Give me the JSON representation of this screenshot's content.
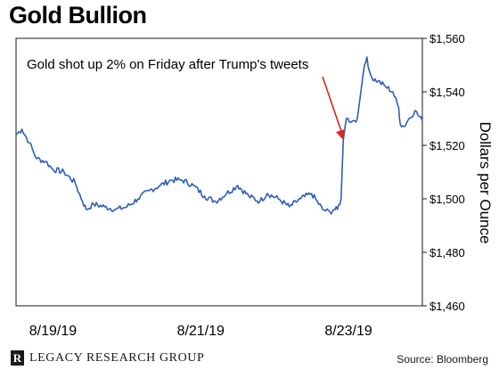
{
  "title": "Gold Bullion",
  "footer": {
    "logo_text": "LEGACY RESEARCH GROUP",
    "logo_mark": "R",
    "source": "Source: Bloomberg"
  },
  "chart_data": {
    "type": "line",
    "title": "Gold Bullion",
    "ylabel": "Dollars per Ounce",
    "xlabel": "",
    "ylim": [
      1460,
      1560
    ],
    "y_ticks": [
      1460,
      1480,
      1500,
      1520,
      1540,
      1560
    ],
    "y_tick_labels": [
      "$1,460",
      "$1,480",
      "$1,500",
      "$1,520",
      "$1,540",
      "$1,560"
    ],
    "x_ticks": [
      {
        "label": "8/19/19",
        "t": 0.2
      },
      {
        "label": "8/21/19",
        "t": 2.2
      },
      {
        "label": "8/23/19",
        "t": 4.2
      }
    ],
    "xlim": [
      -0.3,
      5.2
    ],
    "grid": false,
    "line_color": "#2f5fb3",
    "annotation": {
      "text": "Gold shot up 2% on Friday after Trump's tweets",
      "arrow_target": {
        "t": 4.13,
        "y": 1522
      },
      "arrow_color": "#e0231c"
    },
    "series": [
      {
        "x": [
          -0.3,
          -0.22,
          -0.12,
          -0.02,
          0.1,
          0.2,
          0.35,
          0.5,
          0.6,
          0.65,
          0.75,
          0.9,
          1.05,
          1.2,
          1.35,
          1.5,
          1.65,
          1.8,
          1.95,
          2.1,
          2.25,
          2.4,
          2.55,
          2.7,
          2.85,
          3.0,
          3.1,
          3.25,
          3.4,
          3.55,
          3.7,
          3.85,
          3.95,
          4.0,
          4.05,
          4.1,
          4.13,
          4.17,
          4.25,
          4.32,
          4.4,
          4.45,
          4.48,
          4.52,
          4.6,
          4.7,
          4.8,
          4.88,
          4.9,
          4.95,
          5.02,
          5.1,
          5.2
        ],
        "y": [
          1524,
          1526,
          1521,
          1515,
          1514,
          1511,
          1510,
          1506,
          1499,
          1496,
          1498,
          1497,
          1496,
          1497,
          1500,
          1503,
          1505,
          1507,
          1507,
          1505,
          1501,
          1499,
          1502,
          1505,
          1501,
          1499,
          1502,
          1500,
          1497,
          1500,
          1502,
          1496,
          1495,
          1496,
          1496,
          1500,
          1522,
          1530,
          1529,
          1530,
          1547,
          1553,
          1548,
          1545,
          1544,
          1542,
          1540,
          1534,
          1528,
          1527,
          1530,
          1533,
          1529
        ]
      }
    ]
  }
}
